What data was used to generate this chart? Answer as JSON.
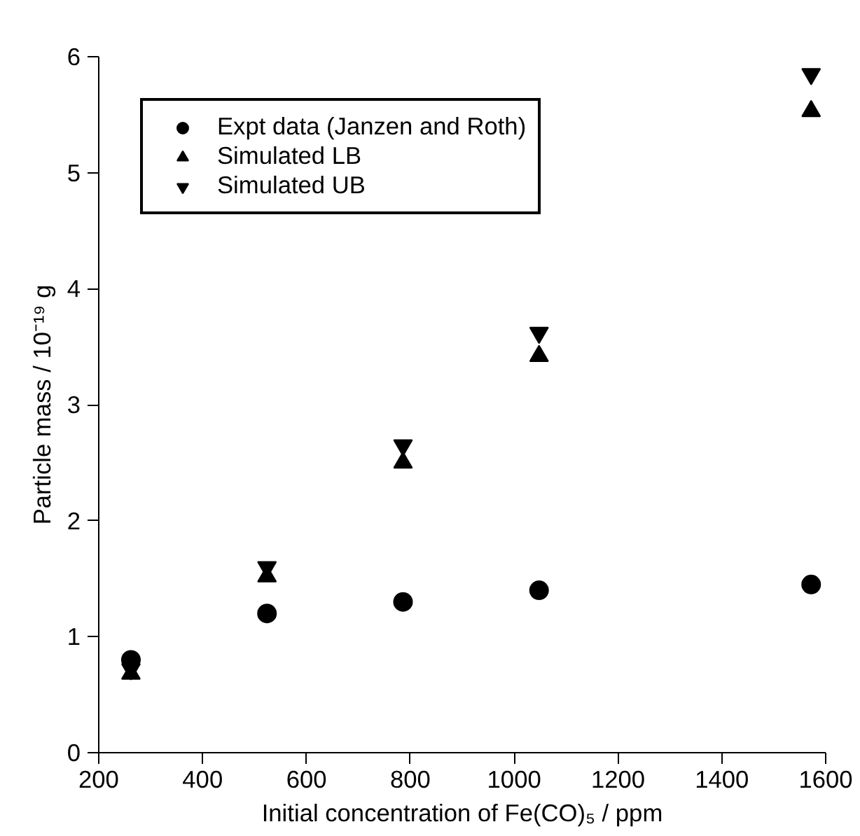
{
  "chart_data": {
    "type": "scatter",
    "xlabel": "Initial concentration of Fe(CO)₅ / ppm",
    "ylabel": "Particle mass / 10⁻¹⁹ g",
    "x": [
      262,
      524,
      786,
      1048,
      1572
    ],
    "series": [
      {
        "name": "Expt data (Janzen and Roth)",
        "color": "#000000",
        "marker": "circle",
        "values": [
          0.8,
          1.2,
          1.3,
          1.4,
          1.45
        ]
      },
      {
        "name": "Simulated LB",
        "color": "#000000",
        "marker": "triangle",
        "values": [
          0.68,
          1.52,
          2.5,
          3.42,
          5.53
        ]
      },
      {
        "name": "Simulated UB",
        "color": "#000000",
        "marker": "triangle",
        "values": [
          0.72,
          1.6,
          2.65,
          3.62,
          5.85
        ]
      }
    ],
    "xlim": [
      200,
      1600
    ],
    "ylim": [
      0,
      6
    ],
    "xticks": [
      200,
      400,
      600,
      800,
      1000,
      1200,
      1400,
      1600
    ],
    "yticks": [
      0,
      1,
      2,
      3,
      4,
      5,
      6
    ],
    "grid": false,
    "legend": "top left"
  }
}
